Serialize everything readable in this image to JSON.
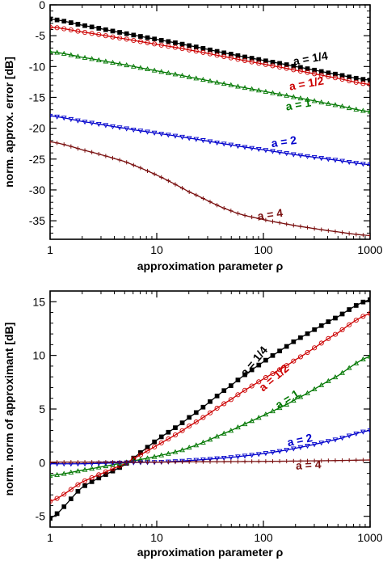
{
  "chart_data": [
    {
      "type": "line",
      "x_scale": "log",
      "xlim": [
        1,
        1000
      ],
      "ylim": [
        -38,
        0
      ],
      "xticks": [
        1,
        10,
        100,
        1000
      ],
      "xtick_labels": [
        "1",
        "10",
        "100",
        "1000"
      ],
      "yticks": [
        0,
        -5,
        -10,
        -15,
        -20,
        -25,
        -30,
        -35
      ],
      "ytick_labels": [
        "0",
        "-5",
        "-10",
        "-15",
        "-20",
        "-25",
        "-30",
        "-35"
      ],
      "xlabel": "approximation parameter ρ",
      "ylabel": "norm. approx. error [dB]",
      "grid": false,
      "x": [
        1,
        2,
        5,
        10,
        20,
        50,
        100,
        200,
        500,
        1000
      ],
      "series": [
        {
          "name": "a = 1/4",
          "color": "#000000",
          "marker": "square-filled",
          "values": [
            -2.3,
            -3.3,
            -4.6,
            -5.6,
            -6.6,
            -8.0,
            -9.0,
            -10.0,
            -11.3,
            -12.2
          ]
        },
        {
          "name": "a = 1/2",
          "color": "#cc0000",
          "marker": "circle-open",
          "values": [
            -3.6,
            -4.4,
            -5.5,
            -6.4,
            -7.3,
            -8.6,
            -9.6,
            -10.6,
            -11.9,
            -12.9
          ]
        },
        {
          "name": "a = 1",
          "color": "#007700",
          "marker": "triangle-open",
          "values": [
            -7.6,
            -8.5,
            -9.7,
            -10.7,
            -11.7,
            -13.0,
            -14.0,
            -15.0,
            -16.3,
            -17.3
          ]
        },
        {
          "name": "a = 2",
          "color": "#0000cc",
          "marker": "triangle-down-open",
          "values": [
            -18.0,
            -18.9,
            -20.0,
            -20.8,
            -21.6,
            -22.7,
            -23.5,
            -24.3,
            -25.2,
            -25.9
          ]
        },
        {
          "name": "a = 4",
          "color": "#7a1010",
          "marker": "plus",
          "values": [
            -22.2,
            -23.5,
            -25.4,
            -27.6,
            -30.3,
            -33.4,
            -34.8,
            -35.8,
            -36.8,
            -37.4
          ]
        }
      ]
    },
    {
      "type": "line",
      "x_scale": "log",
      "xlim": [
        1,
        1000
      ],
      "ylim": [
        -6,
        16
      ],
      "xticks": [
        1,
        10,
        100,
        1000
      ],
      "xtick_labels": [
        "1",
        "10",
        "100",
        "1000"
      ],
      "yticks": [
        -5,
        0,
        5,
        10,
        15
      ],
      "ytick_labels": [
        "-5",
        "0",
        "5",
        "10",
        "15"
      ],
      "xlabel": "approximation parameter ρ",
      "ylabel": "norm. norm of approximant [dB]",
      "grid": false,
      "x": [
        1,
        2,
        5,
        10,
        20,
        50,
        100,
        200,
        500,
        1000
      ],
      "series": [
        {
          "name": "a = 1/4",
          "color": "#000000",
          "marker": "square-filled",
          "values": [
            -5.2,
            -2.3,
            -0.2,
            2.1,
            4.2,
            7.2,
            9.4,
            11.4,
            13.6,
            15.2
          ]
        },
        {
          "name": "a = 1/2",
          "color": "#cc0000",
          "marker": "circle-open",
          "values": [
            -3.6,
            -1.8,
            -0.1,
            1.6,
            3.4,
            5.9,
            7.8,
            9.6,
            12.1,
            13.9
          ]
        },
        {
          "name": "a = 1",
          "color": "#007700",
          "marker": "triangle-open",
          "values": [
            -1.2,
            -0.7,
            0.0,
            0.6,
            1.4,
            3.0,
            4.4,
            5.9,
            8.1,
            9.9
          ]
        },
        {
          "name": "a = 2",
          "color": "#0000cc",
          "marker": "triangle-down-open",
          "values": [
            -0.1,
            -0.1,
            0.0,
            0.05,
            0.2,
            0.5,
            0.85,
            1.35,
            2.2,
            3.0
          ]
        },
        {
          "name": "a = 4",
          "color": "#7a1010",
          "marker": "plus",
          "values": [
            0.05,
            0.05,
            0.05,
            0.05,
            0.08,
            0.1,
            0.12,
            0.15,
            0.2,
            0.25
          ]
        }
      ]
    }
  ],
  "labels": {
    "top": [
      "a = 1/4",
      "a = 1/2",
      "a = 1",
      "a = 2",
      "a = 4"
    ],
    "bottom": [
      "a = 1/4",
      "a = 1/2",
      "a = 1",
      "a = 2",
      "a = 4"
    ]
  }
}
